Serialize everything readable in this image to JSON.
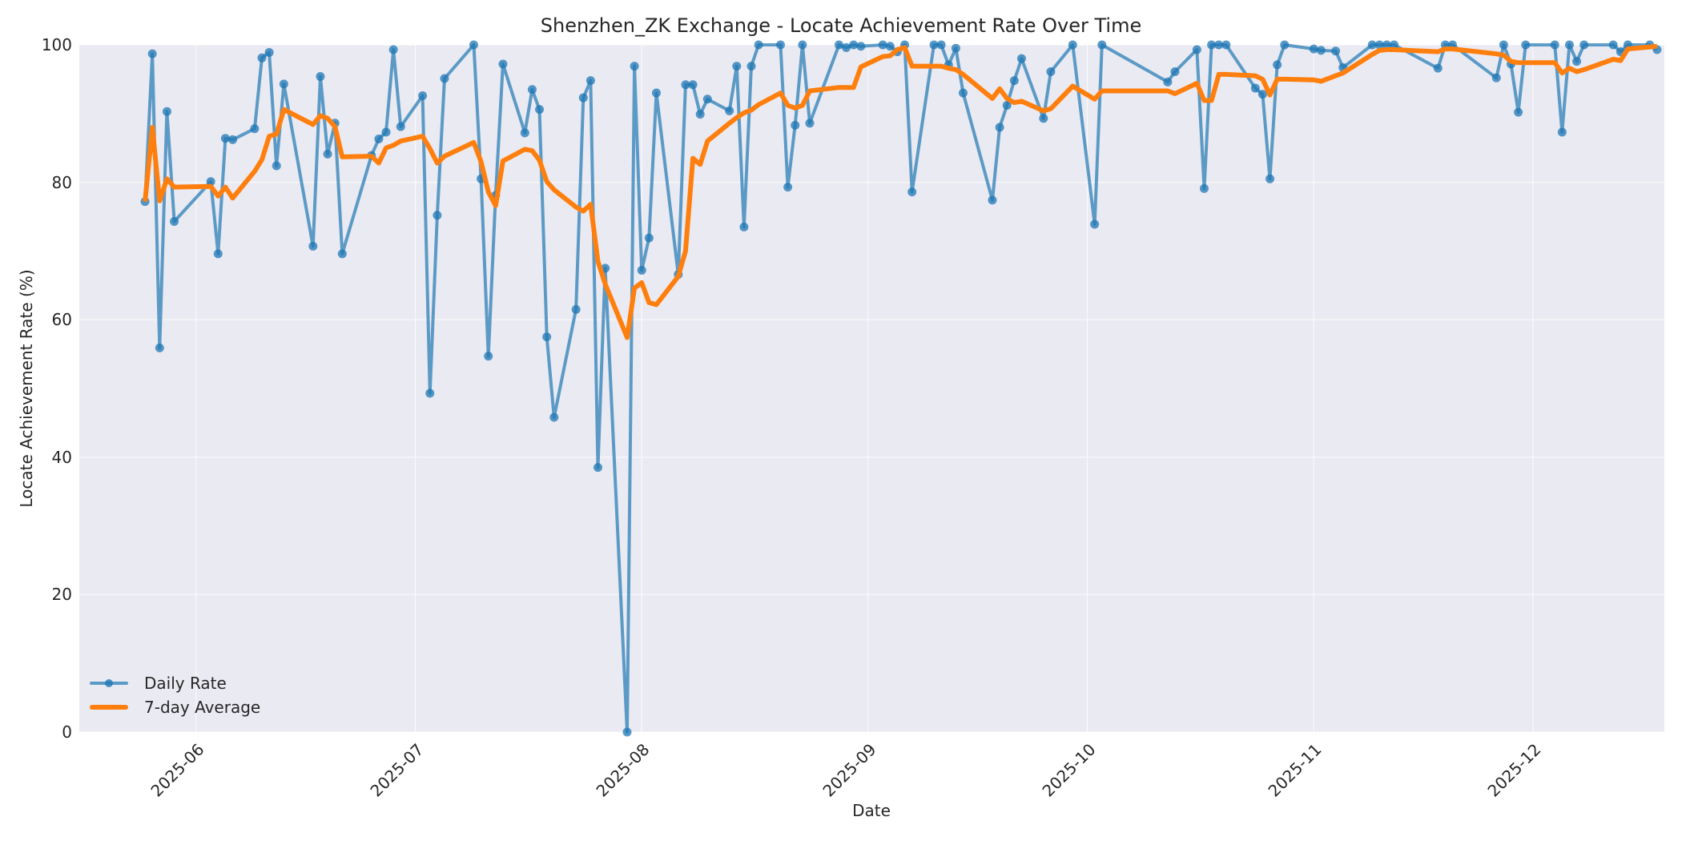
{
  "chart_data": {
    "type": "line",
    "title": "Shenzhen_ZK Exchange - Locate Achievement Rate Over Time",
    "xlabel": "Date",
    "ylabel": "Locate Achievement Rate (%)",
    "ylim": [
      0,
      100
    ],
    "xlim": [
      "2025-05-16",
      "2025-12-19"
    ],
    "yticks": [
      0,
      20,
      40,
      60,
      80,
      100
    ],
    "xticks": [
      "2025-06",
      "2025-07",
      "2025-08",
      "2025-09",
      "2025-10",
      "2025-11",
      "2025-12"
    ],
    "grid": true,
    "legend_position": "lower left",
    "background": "#eaeaf2",
    "series": [
      {
        "name": "Daily Rate",
        "color": "#1f77b4",
        "style": "line+markers",
        "points": [
          [
            "2025-05-25",
            77.2
          ],
          [
            "2025-05-26",
            98.7
          ],
          [
            "2025-05-27",
            55.9
          ],
          [
            "2025-05-28",
            90.3
          ],
          [
            "2025-05-29",
            74.3
          ],
          [
            "2025-06-03",
            80.1
          ],
          [
            "2025-06-04",
            69.6
          ],
          [
            "2025-06-05",
            86.4
          ],
          [
            "2025-06-06",
            86.2
          ],
          [
            "2025-06-09",
            87.8
          ],
          [
            "2025-06-10",
            98.1
          ],
          [
            "2025-06-11",
            98.9
          ],
          [
            "2025-06-12",
            82.4
          ],
          [
            "2025-06-13",
            94.3
          ],
          [
            "2025-06-17",
            70.7
          ],
          [
            "2025-06-18",
            95.4
          ],
          [
            "2025-06-19",
            84.1
          ],
          [
            "2025-06-20",
            88.6
          ],
          [
            "2025-06-21",
            69.6
          ],
          [
            "2025-06-25",
            83.9
          ],
          [
            "2025-06-26",
            86.3
          ],
          [
            "2025-06-27",
            87.3
          ],
          [
            "2025-06-28",
            99.3
          ],
          [
            "2025-06-29",
            88.1
          ],
          [
            "2025-07-02",
            92.6
          ],
          [
            "2025-07-03",
            49.3
          ],
          [
            "2025-07-04",
            75.2
          ],
          [
            "2025-07-05",
            95.1
          ],
          [
            "2025-07-09",
            100.0
          ],
          [
            "2025-07-10",
            80.5
          ],
          [
            "2025-07-11",
            54.7
          ],
          [
            "2025-07-12",
            78.1
          ],
          [
            "2025-07-13",
            97.2
          ],
          [
            "2025-07-16",
            87.2
          ],
          [
            "2025-07-17",
            93.5
          ],
          [
            "2025-07-18",
            90.6
          ],
          [
            "2025-07-19",
            57.5
          ],
          [
            "2025-07-20",
            45.8
          ],
          [
            "2025-07-23",
            61.5
          ],
          [
            "2025-07-24",
            92.3
          ],
          [
            "2025-07-25",
            94.8
          ],
          [
            "2025-07-26",
            38.5
          ],
          [
            "2025-07-27",
            67.5
          ],
          [
            "2025-07-30",
            0.0
          ],
          [
            "2025-07-31",
            96.9
          ],
          [
            "2025-08-01",
            67.2
          ],
          [
            "2025-08-02",
            71.9
          ],
          [
            "2025-08-03",
            93.0
          ],
          [
            "2025-08-06",
            66.6
          ],
          [
            "2025-08-07",
            94.2
          ],
          [
            "2025-08-08",
            94.2
          ],
          [
            "2025-08-09",
            89.9
          ],
          [
            "2025-08-10",
            92.1
          ],
          [
            "2025-08-13",
            90.4
          ],
          [
            "2025-08-14",
            96.9
          ],
          [
            "2025-08-15",
            73.5
          ],
          [
            "2025-08-16",
            96.9
          ],
          [
            "2025-08-17",
            100.0
          ],
          [
            "2025-08-20",
            100.0
          ],
          [
            "2025-08-21",
            79.3
          ],
          [
            "2025-08-22",
            88.3
          ],
          [
            "2025-08-23",
            100.0
          ],
          [
            "2025-08-24",
            88.6
          ],
          [
            "2025-08-28",
            100.0
          ],
          [
            "2025-08-29",
            99.6
          ],
          [
            "2025-08-30",
            100.0
          ],
          [
            "2025-08-31",
            99.8
          ],
          [
            "2025-09-03",
            100.0
          ],
          [
            "2025-09-04",
            99.8
          ],
          [
            "2025-09-05",
            99.0
          ],
          [
            "2025-09-06",
            100.0
          ],
          [
            "2025-09-07",
            78.6
          ],
          [
            "2025-09-10",
            100.0
          ],
          [
            "2025-09-11",
            100.0
          ],
          [
            "2025-09-12",
            97.1
          ],
          [
            "2025-09-13",
            99.5
          ],
          [
            "2025-09-14",
            93.0
          ],
          [
            "2025-09-18",
            77.4
          ],
          [
            "2025-09-19",
            88.0
          ],
          [
            "2025-09-20",
            91.2
          ],
          [
            "2025-09-21",
            94.8
          ],
          [
            "2025-09-22",
            98.0
          ],
          [
            "2025-09-25",
            89.3
          ],
          [
            "2025-09-26",
            96.1
          ],
          [
            "2025-09-29",
            100.0
          ],
          [
            "2025-10-02",
            73.9
          ],
          [
            "2025-10-03",
            100.0
          ],
          [
            "2025-10-12",
            94.6
          ],
          [
            "2025-10-13",
            96.1
          ],
          [
            "2025-10-16",
            99.3
          ],
          [
            "2025-10-17",
            79.1
          ],
          [
            "2025-10-18",
            100.0
          ],
          [
            "2025-10-19",
            100.0
          ],
          [
            "2025-10-20",
            100.0
          ],
          [
            "2025-10-24",
            93.7
          ],
          [
            "2025-10-25",
            92.8
          ],
          [
            "2025-10-26",
            80.5
          ],
          [
            "2025-10-27",
            97.1
          ],
          [
            "2025-10-28",
            100.0
          ],
          [
            "2025-11-01",
            99.4
          ],
          [
            "2025-11-02",
            99.2
          ],
          [
            "2025-11-04",
            99.1
          ],
          [
            "2025-11-05",
            96.7
          ],
          [
            "2025-11-09",
            100.0
          ],
          [
            "2025-11-10",
            100.0
          ],
          [
            "2025-11-11",
            100.0
          ],
          [
            "2025-11-12",
            100.0
          ],
          [
            "2025-11-18",
            96.6
          ],
          [
            "2025-11-19",
            100.0
          ],
          [
            "2025-11-20",
            100.0
          ],
          [
            "2025-11-26",
            95.2
          ],
          [
            "2025-11-27",
            100.0
          ],
          [
            "2025-11-28",
            97.2
          ],
          [
            "2025-11-29",
            90.2
          ],
          [
            "2025-11-30",
            100.0
          ],
          [
            "2025-12-04",
            100.0
          ],
          [
            "2025-12-05",
            87.3
          ],
          [
            "2025-12-06",
            100.0
          ],
          [
            "2025-12-07",
            97.6
          ],
          [
            "2025-12-08",
            100.0
          ],
          [
            "2025-12-12",
            100.0
          ],
          [
            "2025-12-13",
            99.0
          ],
          [
            "2025-12-14",
            100.0
          ],
          [
            "2025-12-17",
            100.0
          ],
          [
            "2025-12-18",
            99.3
          ]
        ]
      },
      {
        "name": "7-day Average",
        "color": "#ff7f0e",
        "style": "line",
        "points": [
          [
            "2025-05-25",
            77.2
          ],
          [
            "2025-05-26",
            88.0
          ],
          [
            "2025-05-27",
            77.3
          ],
          [
            "2025-05-28",
            80.5
          ],
          [
            "2025-05-29",
            79.3
          ],
          [
            "2025-06-03",
            79.4
          ],
          [
            "2025-06-04",
            78.0
          ],
          [
            "2025-06-05",
            79.3
          ],
          [
            "2025-06-06",
            77.7
          ],
          [
            "2025-06-09",
            81.6
          ],
          [
            "2025-06-10",
            83.3
          ],
          [
            "2025-06-11",
            86.7
          ],
          [
            "2025-06-12",
            87.0
          ],
          [
            "2025-06-13",
            90.6
          ],
          [
            "2025-06-17",
            88.4
          ],
          [
            "2025-06-18",
            89.7
          ],
          [
            "2025-06-19",
            89.3
          ],
          [
            "2025-06-20",
            88.1
          ],
          [
            "2025-06-21",
            83.7
          ],
          [
            "2025-06-25",
            83.8
          ],
          [
            "2025-06-26",
            82.8
          ],
          [
            "2025-06-27",
            85.0
          ],
          [
            "2025-06-28",
            85.4
          ],
          [
            "2025-06-29",
            86.0
          ],
          [
            "2025-07-02",
            86.7
          ],
          [
            "2025-07-03",
            84.9
          ],
          [
            "2025-07-04",
            82.8
          ],
          [
            "2025-07-05",
            83.8
          ],
          [
            "2025-07-09",
            85.8
          ],
          [
            "2025-07-10",
            83.0
          ],
          [
            "2025-07-11",
            78.6
          ],
          [
            "2025-07-12",
            76.6
          ],
          [
            "2025-07-13",
            83.1
          ],
          [
            "2025-07-16",
            84.8
          ],
          [
            "2025-07-17",
            84.6
          ],
          [
            "2025-07-18",
            83.2
          ],
          [
            "2025-07-19",
            80.1
          ],
          [
            "2025-07-20",
            78.9
          ],
          [
            "2025-07-23",
            76.4
          ],
          [
            "2025-07-24",
            75.8
          ],
          [
            "2025-07-25",
            76.8
          ],
          [
            "2025-07-26",
            68.5
          ],
          [
            "2025-07-27",
            65.2
          ],
          [
            "2025-07-30",
            57.4
          ],
          [
            "2025-07-31",
            64.6
          ],
          [
            "2025-08-01",
            65.4
          ],
          [
            "2025-08-02",
            62.5
          ],
          [
            "2025-08-03",
            62.2
          ],
          [
            "2025-08-06",
            66.3
          ],
          [
            "2025-08-07",
            70.0
          ],
          [
            "2025-08-08",
            83.5
          ],
          [
            "2025-08-09",
            82.6
          ],
          [
            "2025-08-10",
            86.0
          ],
          [
            "2025-08-13",
            88.6
          ],
          [
            "2025-08-14",
            89.4
          ],
          [
            "2025-08-15",
            90.1
          ],
          [
            "2025-08-16",
            90.5
          ],
          [
            "2025-08-17",
            91.3
          ],
          [
            "2025-08-20",
            93.0
          ],
          [
            "2025-08-21",
            91.2
          ],
          [
            "2025-08-22",
            90.8
          ],
          [
            "2025-08-23",
            91.2
          ],
          [
            "2025-08-24",
            93.3
          ],
          [
            "2025-08-28",
            93.8
          ],
          [
            "2025-08-29",
            93.8
          ],
          [
            "2025-08-30",
            93.8
          ],
          [
            "2025-08-31",
            96.8
          ],
          [
            "2025-09-03",
            98.3
          ],
          [
            "2025-09-04",
            98.4
          ],
          [
            "2025-09-05",
            99.3
          ],
          [
            "2025-09-06",
            99.6
          ],
          [
            "2025-09-07",
            96.9
          ],
          [
            "2025-09-10",
            96.9
          ],
          [
            "2025-09-11",
            96.9
          ],
          [
            "2025-09-12",
            96.6
          ],
          [
            "2025-09-13",
            96.4
          ],
          [
            "2025-09-14",
            95.7
          ],
          [
            "2025-09-18",
            92.2
          ],
          [
            "2025-09-19",
            93.6
          ],
          [
            "2025-09-20",
            92.2
          ],
          [
            "2025-09-21",
            91.6
          ],
          [
            "2025-09-22",
            91.8
          ],
          [
            "2025-09-25",
            90.4
          ],
          [
            "2025-09-26",
            90.7
          ],
          [
            "2025-09-29",
            94.0
          ],
          [
            "2025-10-02",
            92.1
          ],
          [
            "2025-10-03",
            93.3
          ],
          [
            "2025-10-12",
            93.3
          ],
          [
            "2025-10-13",
            92.9
          ],
          [
            "2025-10-16",
            94.4
          ],
          [
            "2025-10-17",
            91.9
          ],
          [
            "2025-10-18",
            91.9
          ],
          [
            "2025-10-19",
            95.7
          ],
          [
            "2025-10-20",
            95.7
          ],
          [
            "2025-10-24",
            95.5
          ],
          [
            "2025-10-25",
            95.0
          ],
          [
            "2025-10-26",
            92.7
          ],
          [
            "2025-10-27",
            95.0
          ],
          [
            "2025-10-28",
            95.0
          ],
          [
            "2025-11-01",
            94.9
          ],
          [
            "2025-11-02",
            94.7
          ],
          [
            "2025-11-04",
            95.5
          ],
          [
            "2025-11-05",
            95.9
          ],
          [
            "2025-11-09",
            98.6
          ],
          [
            "2025-11-10",
            99.2
          ],
          [
            "2025-11-11",
            99.3
          ],
          [
            "2025-11-12",
            99.3
          ],
          [
            "2025-11-18",
            99.0
          ],
          [
            "2025-11-19",
            99.4
          ],
          [
            "2025-11-20",
            99.4
          ],
          [
            "2025-11-26",
            98.7
          ],
          [
            "2025-11-27",
            98.5
          ],
          [
            "2025-11-28",
            97.6
          ],
          [
            "2025-11-29",
            97.4
          ],
          [
            "2025-11-30",
            97.4
          ],
          [
            "2025-12-04",
            97.4
          ],
          [
            "2025-12-05",
            95.9
          ],
          [
            "2025-12-06",
            96.6
          ],
          [
            "2025-12-07",
            96.1
          ],
          [
            "2025-12-08",
            96.4
          ],
          [
            "2025-12-12",
            97.9
          ],
          [
            "2025-12-13",
            97.7
          ],
          [
            "2025-12-14",
            99.4
          ],
          [
            "2025-12-17",
            99.7
          ],
          [
            "2025-12-18",
            99.8
          ]
        ]
      }
    ]
  },
  "legend": {
    "items": [
      {
        "label": "Daily Rate",
        "color": "#1f77b4"
      },
      {
        "label": "7-day Average",
        "color": "#ff7f0e"
      }
    ]
  }
}
